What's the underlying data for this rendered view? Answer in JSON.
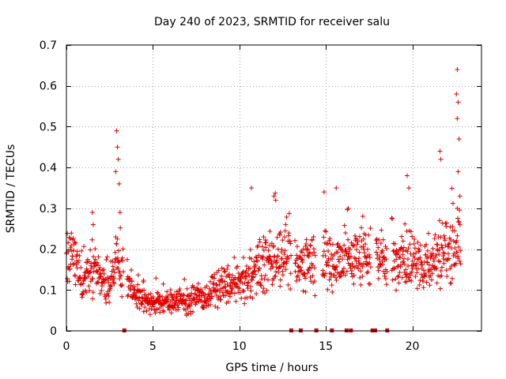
{
  "chart_data": {
    "type": "scatter",
    "title": "Day 240 of 2023, SRMTID for receiver salu",
    "xlabel": "GPS time / hours",
    "ylabel": "SRMTID / TECUs",
    "xlim": [
      0,
      24
    ],
    "ylim": [
      0,
      0.7
    ],
    "grid": true,
    "series_color": "#e00000",
    "marker": "plus",
    "x_ticks": [
      0,
      5,
      10,
      15,
      20
    ],
    "x_tick_labels": [
      "0",
      "5",
      "10",
      "15",
      "20"
    ],
    "y_ticks": [
      0,
      0.1,
      0.2,
      0.3,
      0.4,
      0.5,
      0.6,
      0.7
    ],
    "y_tick_labels": [
      "0",
      "0.1",
      "0.2",
      "0.3",
      "0.4",
      "0.5",
      "0.6",
      "0.7"
    ],
    "zero_markers_x": [
      3.35,
      13.0,
      13.55,
      14.45,
      15.35,
      16.2,
      16.45,
      17.7,
      17.85,
      18.55
    ],
    "profile": [
      [
        0.0,
        0.16
      ],
      [
        0.5,
        0.17
      ],
      [
        1.0,
        0.12
      ],
      [
        1.5,
        0.15
      ],
      [
        2.0,
        0.14
      ],
      [
        2.5,
        0.11
      ],
      [
        3.0,
        0.2
      ],
      [
        3.5,
        0.12
      ],
      [
        4.0,
        0.09
      ],
      [
        4.5,
        0.08
      ],
      [
        5.0,
        0.07
      ],
      [
        5.5,
        0.07
      ],
      [
        6.0,
        0.07
      ],
      [
        6.5,
        0.08
      ],
      [
        7.0,
        0.07
      ],
      [
        7.5,
        0.08
      ],
      [
        8.0,
        0.08
      ],
      [
        8.5,
        0.1
      ],
      [
        9.0,
        0.11
      ],
      [
        9.5,
        0.11
      ],
      [
        10.0,
        0.11
      ],
      [
        10.5,
        0.13
      ],
      [
        11.0,
        0.15
      ],
      [
        11.5,
        0.16
      ],
      [
        12.0,
        0.18
      ],
      [
        12.5,
        0.19
      ],
      [
        13.0,
        0.18
      ],
      [
        13.5,
        0.16
      ],
      [
        14.0,
        0.17
      ],
      [
        14.5,
        0.18
      ],
      [
        15.0,
        0.17
      ],
      [
        15.5,
        0.17
      ],
      [
        16.0,
        0.18
      ],
      [
        16.5,
        0.18
      ],
      [
        17.0,
        0.18
      ],
      [
        17.5,
        0.18
      ],
      [
        18.0,
        0.18
      ],
      [
        18.5,
        0.18
      ],
      [
        19.0,
        0.17
      ],
      [
        19.5,
        0.17
      ],
      [
        20.0,
        0.17
      ],
      [
        20.5,
        0.16
      ],
      [
        21.0,
        0.16
      ],
      [
        21.5,
        0.19
      ],
      [
        22.0,
        0.2
      ],
      [
        22.5,
        0.22
      ],
      [
        22.8,
        0.22
      ]
    ],
    "gaps": [
      [
        3.3,
        3.5
      ],
      [
        13.0,
        13.2
      ],
      [
        14.4,
        14.8
      ],
      [
        17.6,
        17.9
      ],
      [
        18.55,
        18.8
      ]
    ],
    "spikes": [
      {
        "x": 2.9,
        "y": 0.49
      },
      {
        "x": 2.95,
        "y": 0.45
      },
      {
        "x": 3.0,
        "y": 0.42
      },
      {
        "x": 2.85,
        "y": 0.39
      },
      {
        "x": 3.05,
        "y": 0.36
      },
      {
        "x": 3.1,
        "y": 0.29
      },
      {
        "x": 1.5,
        "y": 0.29
      },
      {
        "x": 1.55,
        "y": 0.26
      },
      {
        "x": 10.7,
        "y": 0.35
      },
      {
        "x": 12.0,
        "y": 0.33
      },
      {
        "x": 12.1,
        "y": 0.32
      },
      {
        "x": 14.9,
        "y": 0.34
      },
      {
        "x": 15.6,
        "y": 0.35
      },
      {
        "x": 16.3,
        "y": 0.3
      },
      {
        "x": 19.7,
        "y": 0.38
      },
      {
        "x": 19.8,
        "y": 0.35
      },
      {
        "x": 21.6,
        "y": 0.44
      },
      {
        "x": 21.65,
        "y": 0.42
      },
      {
        "x": 22.6,
        "y": 0.64
      },
      {
        "x": 22.55,
        "y": 0.58
      },
      {
        "x": 22.65,
        "y": 0.56
      },
      {
        "x": 22.6,
        "y": 0.52
      },
      {
        "x": 22.7,
        "y": 0.47
      },
      {
        "x": 22.65,
        "y": 0.39
      },
      {
        "x": 22.75,
        "y": 0.33
      },
      {
        "x": 22.6,
        "y": 0.3
      }
    ],
    "points_per_hour": 60
  }
}
